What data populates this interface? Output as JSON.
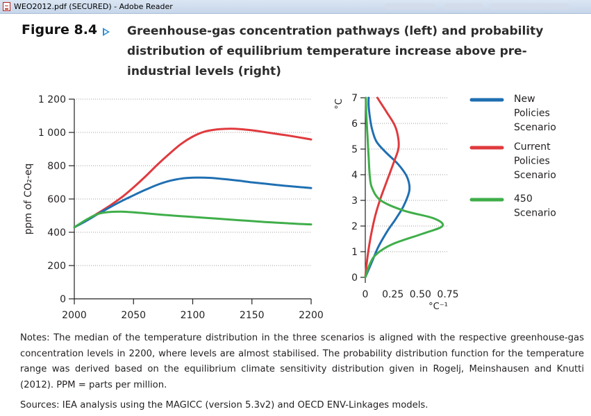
{
  "window": {
    "title": "WEO2012.pdf (SECURED) - Adobe Reader",
    "icon": "pdf-document-icon"
  },
  "figure": {
    "label": "Figure 8.4",
    "arrow_icon": "triangle-right-icon",
    "title": "Greenhouse-gas concentration pathways (left) and probability distribution of equilibrium temperature increase above pre-industrial levels (right)"
  },
  "chart_data": [
    {
      "type": "line",
      "panel": "left",
      "ylabel": "ppm of CO₂-eq",
      "xlabel": "",
      "xlim": [
        2000,
        2200
      ],
      "ylim": [
        0,
        1200
      ],
      "xticks": [
        2000,
        2050,
        2100,
        2150,
        2200
      ],
      "xtick_labels": [
        "2000",
        "2050",
        "2100",
        "2150",
        "2200"
      ],
      "yticks": [
        0,
        200,
        400,
        600,
        800,
        1000,
        1200
      ],
      "ytick_labels": [
        "0",
        "200",
        "400",
        "600",
        "800",
        "1 000",
        "1 200"
      ],
      "grid": "horizontal dotted",
      "series": [
        {
          "name": "Current Policies Scenario",
          "color": "#e03a3e",
          "x": [
            2000,
            2010,
            2020,
            2030,
            2040,
            2050,
            2060,
            2070,
            2080,
            2090,
            2100,
            2110,
            2120,
            2130,
            2140,
            2150,
            2160,
            2170,
            2180,
            2190,
            2200
          ],
          "y": [
            430,
            470,
            515,
            560,
            610,
            670,
            735,
            805,
            870,
            930,
            975,
            1005,
            1018,
            1022,
            1020,
            1013,
            1003,
            992,
            982,
            970,
            958
          ]
        },
        {
          "name": "New Policies Scenario",
          "color": "#1f6fb2",
          "x": [
            2000,
            2010,
            2020,
            2030,
            2040,
            2050,
            2060,
            2070,
            2080,
            2090,
            2100,
            2110,
            2120,
            2130,
            2140,
            2150,
            2160,
            2170,
            2180,
            2190,
            2200
          ],
          "y": [
            430,
            468,
            510,
            550,
            588,
            622,
            655,
            685,
            708,
            722,
            728,
            728,
            724,
            717,
            709,
            700,
            693,
            685,
            678,
            672,
            666
          ]
        },
        {
          "name": "450 Scenario",
          "color": "#3fae49",
          "x": [
            2000,
            2010,
            2020,
            2030,
            2040,
            2050,
            2060,
            2070,
            2080,
            2090,
            2100,
            2110,
            2120,
            2130,
            2140,
            2150,
            2160,
            2170,
            2180,
            2190,
            2200
          ],
          "y": [
            430,
            475,
            510,
            522,
            524,
            520,
            514,
            508,
            502,
            497,
            492,
            487,
            482,
            477,
            472,
            467,
            462,
            458,
            454,
            450,
            447
          ]
        }
      ]
    },
    {
      "type": "line",
      "panel": "right",
      "ylabel": "°C",
      "xlabel": "°C⁻¹",
      "xlim": [
        0,
        0.75
      ],
      "ylim": [
        0,
        7
      ],
      "xticks": [
        0,
        0.25,
        0.5,
        0.75
      ],
      "xtick_labels": [
        "0",
        "0.25",
        "0.50",
        "0.75"
      ],
      "yticks": [
        0,
        1,
        2,
        3,
        4,
        5,
        6,
        7
      ],
      "ytick_labels": [
        "0",
        "1",
        "2",
        "3",
        "4",
        "5",
        "6",
        "7"
      ],
      "grid": "horizontal dotted",
      "series": [
        {
          "name": "New Policies Scenario",
          "color": "#1f6fb2",
          "x": [
            0,
            0.06,
            0.12,
            0.2,
            0.28,
            0.35,
            0.4,
            0.38,
            0.3,
            0.18,
            0.1,
            0.06,
            0.04,
            0.03,
            0.03
          ],
          "y": [
            0,
            0.6,
            1.2,
            1.8,
            2.3,
            2.8,
            3.4,
            3.9,
            4.4,
            4.9,
            5.3,
            5.8,
            6.3,
            6.7,
            7.0
          ]
        },
        {
          "name": "Current Policies Scenario",
          "color": "#e03a3e",
          "x": [
            0,
            0.02,
            0.05,
            0.09,
            0.14,
            0.2,
            0.26,
            0.3,
            0.3,
            0.27,
            0.2,
            0.14,
            0.11
          ],
          "y": [
            0,
            0.8,
            1.6,
            2.4,
            3.1,
            3.8,
            4.5,
            5.0,
            5.4,
            5.9,
            6.4,
            6.8,
            7.0
          ]
        },
        {
          "name": "450 Scenario",
          "color": "#3fae49",
          "x": [
            0,
            0.04,
            0.1,
            0.25,
            0.52,
            0.7,
            0.62,
            0.35,
            0.14,
            0.06,
            0.04,
            0.03,
            0.02,
            0.01,
            0.005
          ],
          "y": [
            0,
            0.5,
            0.9,
            1.3,
            1.7,
            2.0,
            2.3,
            2.6,
            3.0,
            3.5,
            4.0,
            4.7,
            5.5,
            6.3,
            7.0
          ]
        }
      ]
    }
  ],
  "legend": {
    "placement": "right",
    "items": [
      {
        "label_lines": [
          "New",
          "Policies",
          "Scenario"
        ],
        "color": "#1f6fb2"
      },
      {
        "label_lines": [
          "Current",
          "Policies",
          "Scenario"
        ],
        "color": "#e03a3e"
      },
      {
        "label_lines": [
          "450",
          "Scenario"
        ],
        "color": "#3fae49"
      }
    ]
  },
  "notes": "Notes: The median of the temperature distribution in the three scenarios is aligned with the respective greenhouse-gas concentration levels in 2200, where levels are almost stabilised. The probability distribution function for the temperature range was derived based on the equilibrium climate sensitivity distribution given in Rogelj, Meinshausen and Knutti (2012). PPM = parts per million.",
  "sources": "Sources: IEA analysis using the MAGICC (version 5.3v2) and OECD ENV-Linkages models."
}
